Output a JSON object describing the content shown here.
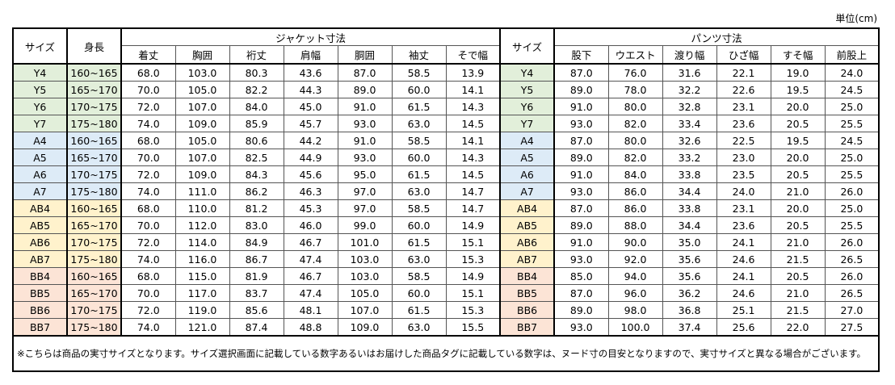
{
  "unit_label": "単位(cm)",
  "headers": {
    "size": "サイズ",
    "height": "身長",
    "jacket_group": "ジャケット寸法",
    "pants_size": "サイズ",
    "pants_group": "パンツ寸法",
    "jacket_cols": [
      "着丈",
      "胸囲",
      "裄丈",
      "肩幅",
      "胴囲",
      "袖丈",
      "そで幅"
    ],
    "pants_cols": [
      "股下",
      "ウエスト",
      "渡り幅",
      "ひざ幅",
      "すそ幅",
      "前股上"
    ]
  },
  "groups": {
    "Y": "#e2efda",
    "A": "#ddebf7",
    "AB": "#fff2cc",
    "BB": "#fce4d6"
  },
  "rows": [
    {
      "group": "Y",
      "size": "Y4",
      "height": "160~165",
      "jacket": [
        "68.0",
        "103.0",
        "80.3",
        "43.6",
        "87.0",
        "58.5",
        "13.9"
      ],
      "pants_size": "Y4",
      "pants": [
        "87.0",
        "76.0",
        "31.6",
        "22.1",
        "19.0",
        "24.0"
      ]
    },
    {
      "group": "Y",
      "size": "Y5",
      "height": "165~170",
      "jacket": [
        "70.0",
        "105.0",
        "82.2",
        "44.3",
        "89.0",
        "60.0",
        "14.1"
      ],
      "pants_size": "Y5",
      "pants": [
        "89.0",
        "78.0",
        "32.2",
        "22.6",
        "19.5",
        "24.5"
      ]
    },
    {
      "group": "Y",
      "size": "Y6",
      "height": "170~175",
      "jacket": [
        "72.0",
        "107.0",
        "84.0",
        "45.0",
        "91.0",
        "61.5",
        "14.3"
      ],
      "pants_size": "Y6",
      "pants": [
        "91.0",
        "80.0",
        "32.8",
        "23.1",
        "20.0",
        "25.0"
      ]
    },
    {
      "group": "Y",
      "size": "Y7",
      "height": "175~180",
      "jacket": [
        "74.0",
        "109.0",
        "85.9",
        "45.7",
        "93.0",
        "63.0",
        "14.5"
      ],
      "pants_size": "Y7",
      "pants": [
        "93.0",
        "82.0",
        "33.4",
        "23.6",
        "20.5",
        "25.5"
      ]
    },
    {
      "group": "A",
      "size": "A4",
      "height": "160~165",
      "jacket": [
        "68.0",
        "105.0",
        "80.6",
        "44.2",
        "91.0",
        "58.5",
        "14.1"
      ],
      "pants_size": "A4",
      "pants": [
        "87.0",
        "80.0",
        "32.6",
        "22.5",
        "19.5",
        "24.5"
      ]
    },
    {
      "group": "A",
      "size": "A5",
      "height": "165~170",
      "jacket": [
        "70.0",
        "107.0",
        "82.5",
        "44.9",
        "93.0",
        "60.0",
        "14.3"
      ],
      "pants_size": "A5",
      "pants": [
        "89.0",
        "82.0",
        "33.2",
        "23.0",
        "20.0",
        "25.0"
      ]
    },
    {
      "group": "A",
      "size": "A6",
      "height": "170~175",
      "jacket": [
        "72.0",
        "109.0",
        "84.3",
        "45.6",
        "95.0",
        "61.5",
        "14.5"
      ],
      "pants_size": "A6",
      "pants": [
        "91.0",
        "84.0",
        "33.8",
        "23.5",
        "20.5",
        "25.5"
      ]
    },
    {
      "group": "A",
      "size": "A7",
      "height": "175~180",
      "jacket": [
        "74.0",
        "111.0",
        "86.2",
        "46.3",
        "97.0",
        "63.0",
        "14.7"
      ],
      "pants_size": "A7",
      "pants": [
        "93.0",
        "86.0",
        "34.4",
        "24.0",
        "21.0",
        "26.0"
      ]
    },
    {
      "group": "AB",
      "size": "AB4",
      "height": "160~165",
      "jacket": [
        "68.0",
        "110.0",
        "81.2",
        "45.3",
        "97.0",
        "58.5",
        "14.7"
      ],
      "pants_size": "AB4",
      "pants": [
        "87.0",
        "86.0",
        "33.8",
        "23.1",
        "20.0",
        "25.0"
      ]
    },
    {
      "group": "AB",
      "size": "AB5",
      "height": "165~170",
      "jacket": [
        "70.0",
        "112.0",
        "83.0",
        "46.0",
        "99.0",
        "60.0",
        "14.9"
      ],
      "pants_size": "AB5",
      "pants": [
        "89.0",
        "88.0",
        "34.4",
        "23.6",
        "20.5",
        "25.5"
      ]
    },
    {
      "group": "AB",
      "size": "AB6",
      "height": "170~175",
      "jacket": [
        "72.0",
        "114.0",
        "84.9",
        "46.7",
        "101.0",
        "61.5",
        "15.1"
      ],
      "pants_size": "AB6",
      "pants": [
        "91.0",
        "90.0",
        "35.0",
        "24.1",
        "21.0",
        "26.0"
      ]
    },
    {
      "group": "AB",
      "size": "AB7",
      "height": "175~180",
      "jacket": [
        "74.0",
        "116.0",
        "86.7",
        "47.4",
        "103.0",
        "63.0",
        "15.3"
      ],
      "pants_size": "AB7",
      "pants": [
        "93.0",
        "92.0",
        "35.6",
        "24.6",
        "21.5",
        "26.5"
      ]
    },
    {
      "group": "BB",
      "size": "BB4",
      "height": "160~165",
      "jacket": [
        "68.0",
        "115.0",
        "81.9",
        "46.7",
        "103.0",
        "58.5",
        "14.9"
      ],
      "pants_size": "BB4",
      "pants": [
        "85.0",
        "94.0",
        "35.6",
        "24.1",
        "20.5",
        "26.0"
      ]
    },
    {
      "group": "BB",
      "size": "BB5",
      "height": "165~170",
      "jacket": [
        "70.0",
        "117.0",
        "83.7",
        "47.4",
        "105.0",
        "60.0",
        "15.1"
      ],
      "pants_size": "BB5",
      "pants": [
        "87.0",
        "96.0",
        "36.2",
        "24.6",
        "21.0",
        "26.5"
      ]
    },
    {
      "group": "BB",
      "size": "BB6",
      "height": "170~175",
      "jacket": [
        "72.0",
        "119.0",
        "85.6",
        "48.1",
        "107.0",
        "61.5",
        "15.3"
      ],
      "pants_size": "BB6",
      "pants": [
        "89.0",
        "98.0",
        "36.8",
        "25.1",
        "21.5",
        "27.0"
      ]
    },
    {
      "group": "BB",
      "size": "BB7",
      "height": "175~180",
      "jacket": [
        "74.0",
        "121.0",
        "87.4",
        "48.8",
        "109.0",
        "63.0",
        "15.5"
      ],
      "pants_size": "BB7",
      "pants": [
        "93.0",
        "100.0",
        "37.4",
        "25.6",
        "22.0",
        "27.5"
      ]
    }
  ],
  "note": "※こちらは商品の実寸サイズとなります。サイズ選択画面に記載している数字あるいはお届けした商品タグに記載している数字は、ヌード寸の目安となりますので、実寸サイズと異なる場合がございます。"
}
